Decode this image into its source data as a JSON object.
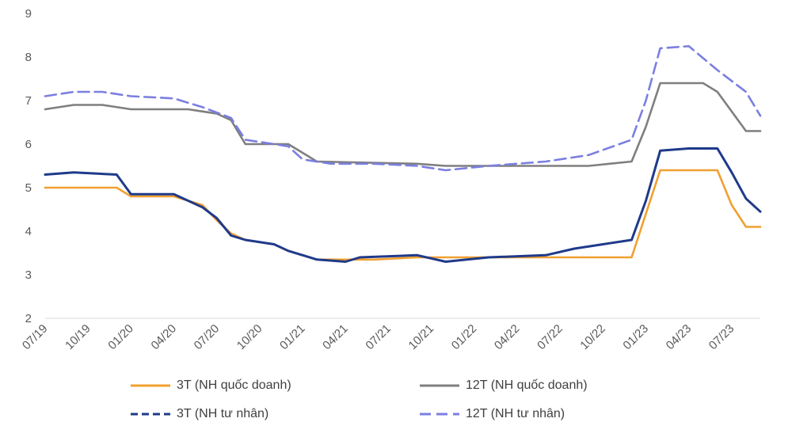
{
  "chart_data": {
    "type": "line",
    "ylim": [
      2,
      9
    ],
    "yticks": [
      2,
      3,
      4,
      5,
      6,
      7,
      8,
      9
    ],
    "xlim": [
      "2019-07",
      "2023-09"
    ],
    "xticks": [
      "07/19",
      "10/19",
      "01/20",
      "04/20",
      "07/20",
      "10/20",
      "01/21",
      "04/21",
      "07/21",
      "10/21",
      "01/22",
      "04/22",
      "07/22",
      "10/22",
      "01/23",
      "04/23",
      "07/23"
    ],
    "grid": false,
    "legend_position": "bottom",
    "series": [
      {
        "name": "3T (NH quốc doanh)",
        "color": "#F0A030",
        "dash": "solid",
        "points": [
          [
            "2019-07",
            5.0
          ],
          [
            "2019-12",
            5.0
          ],
          [
            "2020-01",
            4.8
          ],
          [
            "2020-04",
            4.8
          ],
          [
            "2020-06",
            4.6
          ],
          [
            "2020-07",
            4.25
          ],
          [
            "2020-08",
            3.95
          ],
          [
            "2020-09",
            3.8
          ],
          [
            "2020-11",
            3.7
          ],
          [
            "2020-12",
            3.55
          ],
          [
            "2021-02",
            3.35
          ],
          [
            "2021-06",
            3.35
          ],
          [
            "2021-09",
            3.4
          ],
          [
            "2022-12",
            3.4
          ],
          [
            "2023-01",
            4.4
          ],
          [
            "2023-02",
            5.4
          ],
          [
            "2023-06",
            5.4
          ],
          [
            "2023-07",
            4.6
          ],
          [
            "2023-08",
            4.1
          ],
          [
            "2023-09",
            4.1
          ]
        ]
      },
      {
        "name": "12T (NH quốc doanh)",
        "color": "#7F7F7F",
        "dash": "solid",
        "points": [
          [
            "2019-07",
            6.8
          ],
          [
            "2019-09",
            6.9
          ],
          [
            "2019-11",
            6.9
          ],
          [
            "2020-01",
            6.8
          ],
          [
            "2020-05",
            6.8
          ],
          [
            "2020-07",
            6.7
          ],
          [
            "2020-08",
            6.55
          ],
          [
            "2020-09",
            6.0
          ],
          [
            "2020-12",
            6.0
          ],
          [
            "2021-01",
            5.8
          ],
          [
            "2021-02",
            5.6
          ],
          [
            "2021-09",
            5.55
          ],
          [
            "2021-11",
            5.5
          ],
          [
            "2022-09",
            5.5
          ],
          [
            "2022-12",
            5.6
          ],
          [
            "2023-01",
            6.4
          ],
          [
            "2023-02",
            7.4
          ],
          [
            "2023-05",
            7.4
          ],
          [
            "2023-06",
            7.2
          ],
          [
            "2023-08",
            6.3
          ],
          [
            "2023-09",
            6.3
          ]
        ]
      },
      {
        "name": "3T (NH tư nhân)",
        "color": "#1F3A8A",
        "dash": "solid",
        "points": [
          [
            "2019-07",
            5.3
          ],
          [
            "2019-09",
            5.35
          ],
          [
            "2019-12",
            5.3
          ],
          [
            "2020-01",
            4.85
          ],
          [
            "2020-04",
            4.85
          ],
          [
            "2020-06",
            4.55
          ],
          [
            "2020-07",
            4.3
          ],
          [
            "2020-08",
            3.9
          ],
          [
            "2020-09",
            3.8
          ],
          [
            "2020-11",
            3.7
          ],
          [
            "2020-12",
            3.55
          ],
          [
            "2021-02",
            3.35
          ],
          [
            "2021-04",
            3.3
          ],
          [
            "2021-05",
            3.4
          ],
          [
            "2021-09",
            3.45
          ],
          [
            "2021-11",
            3.3
          ],
          [
            "2022-02",
            3.4
          ],
          [
            "2022-06",
            3.45
          ],
          [
            "2022-08",
            3.6
          ],
          [
            "2022-10",
            3.7
          ],
          [
            "2022-12",
            3.8
          ],
          [
            "2023-01",
            4.7
          ],
          [
            "2023-02",
            5.85
          ],
          [
            "2023-04",
            5.9
          ],
          [
            "2023-06",
            5.9
          ],
          [
            "2023-07",
            5.35
          ],
          [
            "2023-08",
            4.75
          ],
          [
            "2023-09",
            4.45
          ]
        ]
      },
      {
        "name": "12T (NH tư nhân)",
        "color": "#7B7FE0",
        "dash": "dashed",
        "points": [
          [
            "2019-07",
            7.1
          ],
          [
            "2019-09",
            7.2
          ],
          [
            "2019-11",
            7.2
          ],
          [
            "2020-01",
            7.1
          ],
          [
            "2020-04",
            7.05
          ],
          [
            "2020-06",
            6.85
          ],
          [
            "2020-08",
            6.6
          ],
          [
            "2020-09",
            6.1
          ],
          [
            "2020-12",
            5.95
          ],
          [
            "2021-01",
            5.65
          ],
          [
            "2021-03",
            5.55
          ],
          [
            "2021-06",
            5.55
          ],
          [
            "2021-09",
            5.5
          ],
          [
            "2021-11",
            5.4
          ],
          [
            "2022-02",
            5.5
          ],
          [
            "2022-06",
            5.6
          ],
          [
            "2022-09",
            5.75
          ],
          [
            "2022-12",
            6.1
          ],
          [
            "2023-01",
            7.0
          ],
          [
            "2023-02",
            8.2
          ],
          [
            "2023-04",
            8.25
          ],
          [
            "2023-06",
            7.7
          ],
          [
            "2023-08",
            7.2
          ],
          [
            "2023-09",
            6.65
          ]
        ]
      }
    ]
  }
}
